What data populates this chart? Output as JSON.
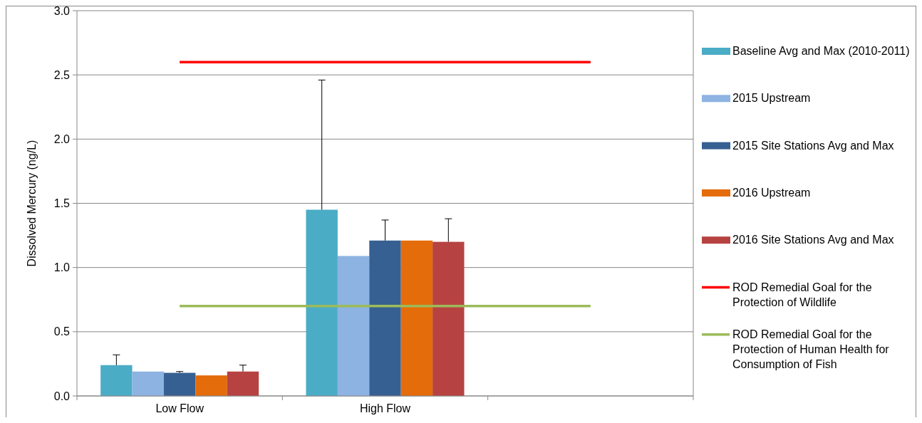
{
  "chart_data": {
    "type": "bar",
    "ylabel": "Dissolved Mercury (ng/L)",
    "categories": [
      "Low Flow",
      "High Flow",
      null
    ],
    "ylim": [
      0,
      3
    ],
    "yticks": [
      {
        "value": 0,
        "label": "0.0"
      },
      {
        "value": 0.5,
        "label": "0.5"
      },
      {
        "value": 1,
        "label": "1.0"
      },
      {
        "value": 1.5,
        "label": "1.5"
      },
      {
        "value": 2,
        "label": "2.0"
      },
      {
        "value": 2.5,
        "label": "2.5"
      },
      {
        "value": 3,
        "label": "3.0"
      }
    ],
    "grid": "y",
    "legend": "right",
    "series": [
      {
        "name": "Baseline Avg and Max (2010-2011)",
        "color": "#4bacc6",
        "values": [
          0.24,
          1.45,
          null
        ],
        "errors": [
          [
            0.24,
            0.32
          ],
          [
            1.45,
            2.46
          ],
          null
        ]
      },
      {
        "name": "2015 Upstream",
        "color": "#8db3e2",
        "values": [
          0.19,
          1.09,
          null
        ]
      },
      {
        "name": "2015 Site Stations Avg and Max",
        "color": "#376092",
        "values": [
          0.18,
          1.21,
          null
        ],
        "errors": [
          [
            0.18,
            0.19
          ],
          [
            1.21,
            1.37
          ],
          null
        ]
      },
      {
        "name": "2016 Upstream",
        "color": "#e46c0a",
        "values": [
          0.16,
          1.21,
          null
        ]
      },
      {
        "name": "2016 Site Stations Avg and Max",
        "color": "#b64341",
        "values": [
          0.19,
          1.2,
          null
        ],
        "errors": [
          [
            0.19,
            0.24
          ],
          [
            1.2,
            1.38
          ],
          null
        ]
      },
      {
        "name": "ROD Remedial Goal for the Protection of Wildlife",
        "type": "line",
        "color": "#ff0000",
        "values": [
          2.6,
          2.6,
          2.6
        ]
      },
      {
        "name": "ROD Remedial Goal for the Protection of Human Health for Consumption of Fish",
        "type": "line",
        "color": "#9bbb59",
        "values": [
          0.7,
          0.7,
          0.7
        ]
      }
    ]
  }
}
